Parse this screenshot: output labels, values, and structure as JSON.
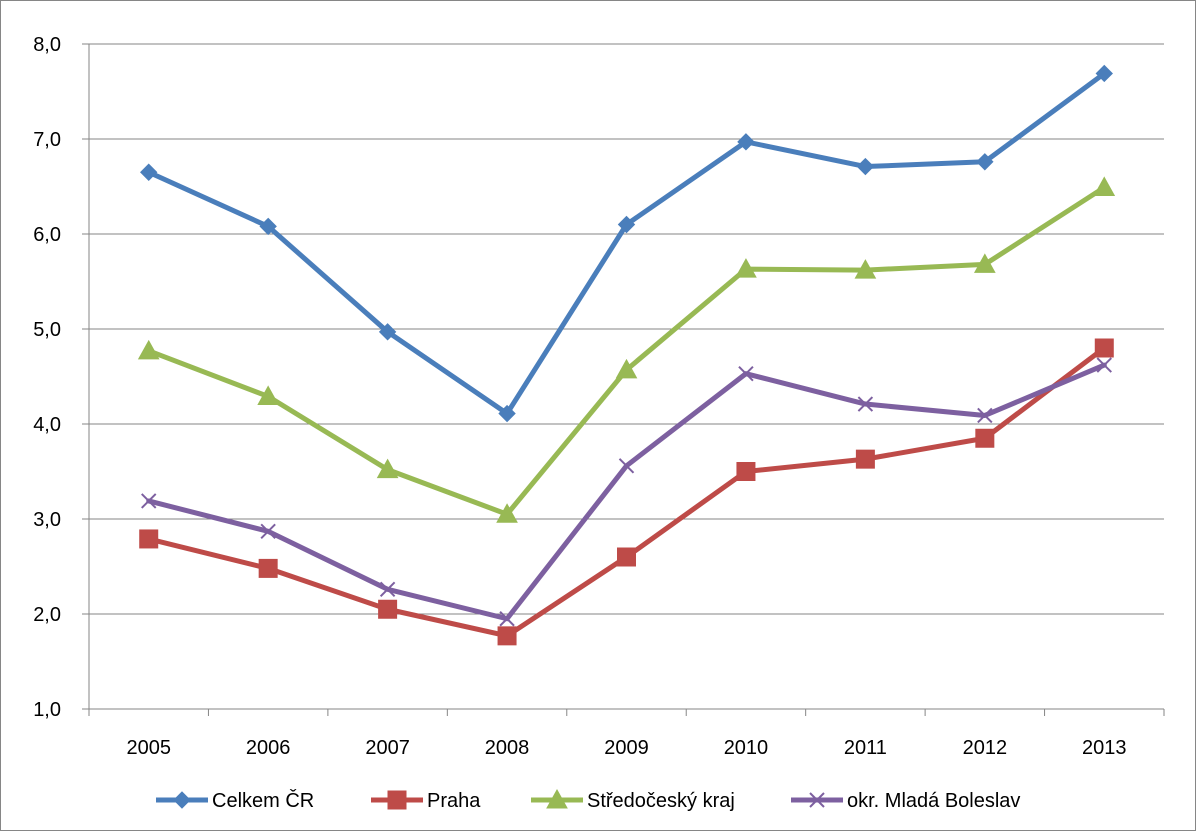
{
  "chart_data": {
    "type": "line",
    "title": "",
    "xlabel": "",
    "ylabel": "",
    "x": [
      "2005",
      "2006",
      "2007",
      "2008",
      "2009",
      "2010",
      "2011",
      "2012",
      "2013"
    ],
    "ylim": [
      1.0,
      8.0
    ],
    "yticks": [
      "1,0",
      "2,0",
      "3,0",
      "4,0",
      "5,0",
      "6,0",
      "7,0",
      "8,0"
    ],
    "grid": "horizontal",
    "legend_position": "bottom",
    "series": [
      {
        "name": "Celkem ČR",
        "color": "#4a7ebb",
        "marker": "diamond",
        "values": [
          6.65,
          6.08,
          4.97,
          4.11,
          6.1,
          6.97,
          6.71,
          6.76,
          7.69
        ]
      },
      {
        "name": "Praha",
        "color": "#be4b48",
        "marker": "square",
        "values": [
          2.79,
          2.48,
          2.05,
          1.77,
          2.6,
          3.5,
          3.63,
          3.85,
          4.8
        ]
      },
      {
        "name": "Středočeský kraj",
        "color": "#98b954",
        "marker": "triangle",
        "values": [
          4.77,
          4.29,
          3.52,
          3.05,
          4.57,
          5.63,
          5.62,
          5.68,
          6.49
        ]
      },
      {
        "name": "okr. Mladá Boleslav",
        "color": "#7d60a0",
        "marker": "x",
        "values": [
          3.19,
          2.87,
          2.26,
          1.95,
          3.56,
          4.53,
          4.21,
          4.09,
          4.62
        ]
      }
    ]
  }
}
